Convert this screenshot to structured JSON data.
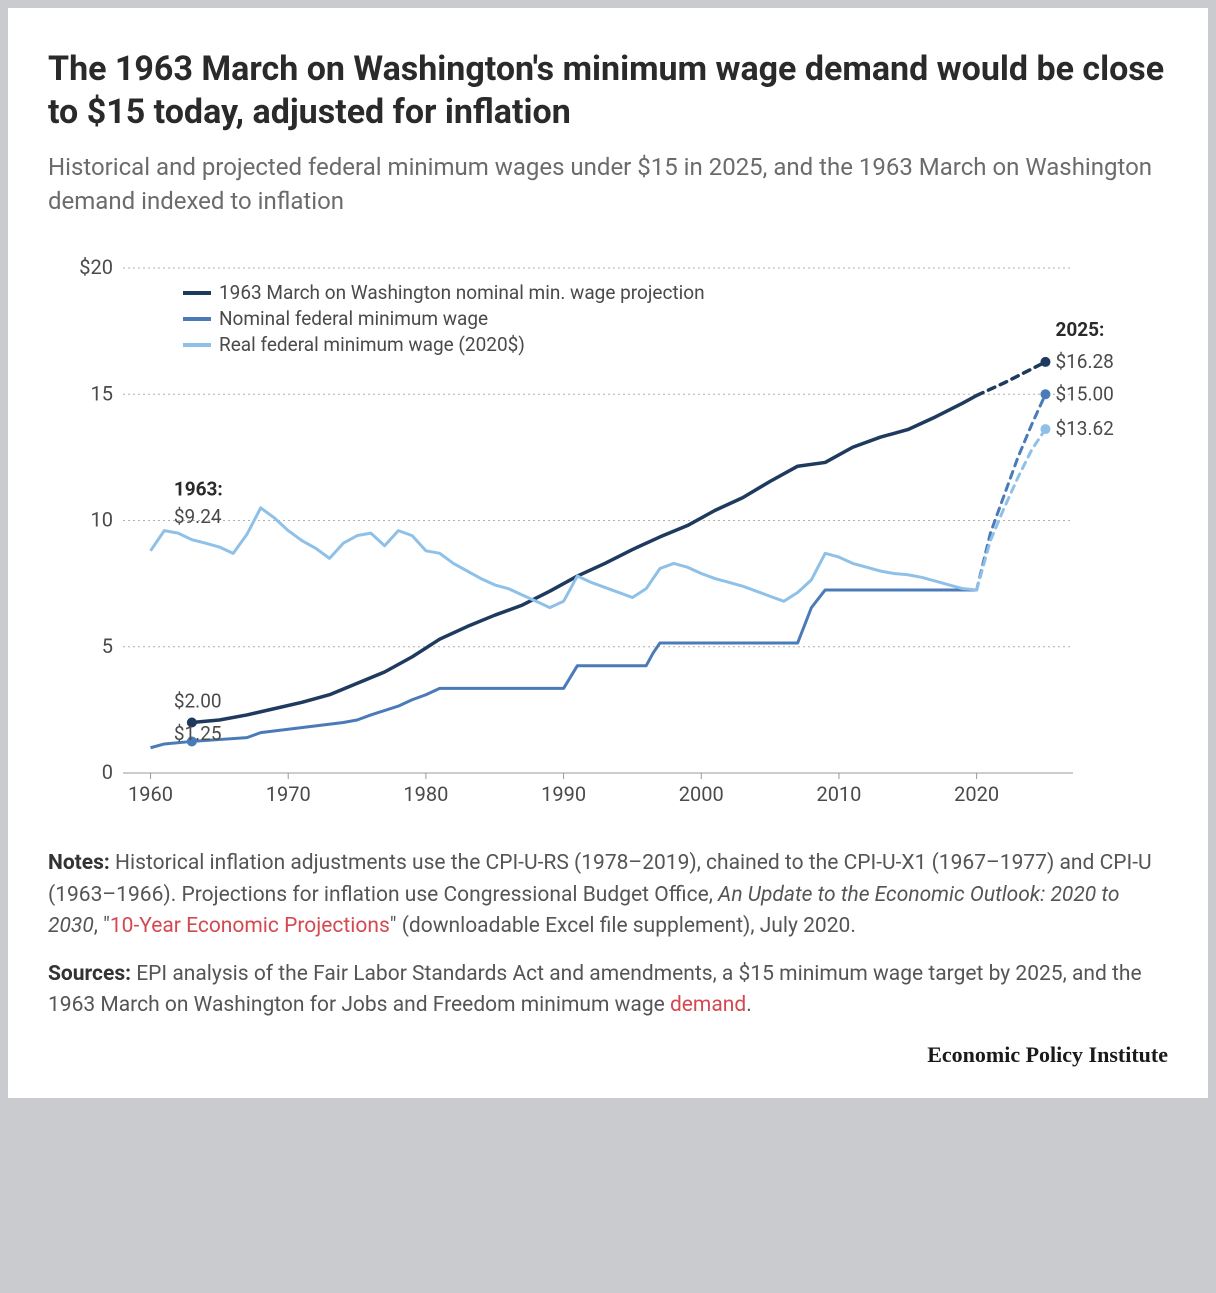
{
  "title": "The 1963 March on Washington's minimum wage demand would be close to $15 today, adjusted for inflation",
  "subtitle": "Historical and projected federal minimum wages under $15 in 2025, and the 1963 March on Washington demand indexed to inflation",
  "chart": {
    "type": "line",
    "background_color": "#ffffff",
    "grid_color": "#b0b0b0",
    "xlim": [
      1958,
      2027
    ],
    "ylim": [
      0,
      20
    ],
    "yticks": [
      0,
      5,
      10,
      15,
      20
    ],
    "ytick_labels": [
      "0",
      "5",
      "10",
      "15",
      "$20"
    ],
    "xticks": [
      1960,
      1970,
      1980,
      1990,
      2000,
      2010,
      2020
    ],
    "legend": {
      "position": "top-left",
      "items": [
        {
          "label": "1963 March on Washington nominal min. wage projection",
          "color": "#1f3a5f"
        },
        {
          "label": "Nominal federal minimum wage",
          "color": "#4a7bb8"
        },
        {
          "label": "Real federal minimum wage (2020$)",
          "color": "#8fc1e8"
        }
      ]
    },
    "series": [
      {
        "name": "march_projection",
        "color": "#1f3a5f",
        "width": 3.5,
        "solid": [
          [
            1963,
            2.0
          ],
          [
            1965,
            2.1
          ],
          [
            1967,
            2.3
          ],
          [
            1969,
            2.55
          ],
          [
            1971,
            2.8
          ],
          [
            1973,
            3.1
          ],
          [
            1975,
            3.55
          ],
          [
            1977,
            4.0
          ],
          [
            1979,
            4.6
          ],
          [
            1981,
            5.3
          ],
          [
            1983,
            5.8
          ],
          [
            1985,
            6.25
          ],
          [
            1987,
            6.65
          ],
          [
            1989,
            7.2
          ],
          [
            1991,
            7.8
          ],
          [
            1993,
            8.3
          ],
          [
            1995,
            8.85
          ],
          [
            1997,
            9.35
          ],
          [
            1999,
            9.8
          ],
          [
            2001,
            10.4
          ],
          [
            2003,
            10.9
          ],
          [
            2005,
            11.55
          ],
          [
            2007,
            12.15
          ],
          [
            2009,
            12.3
          ],
          [
            2011,
            12.9
          ],
          [
            2013,
            13.3
          ],
          [
            2015,
            13.6
          ],
          [
            2017,
            14.1
          ],
          [
            2019,
            14.65
          ],
          [
            2020,
            14.95
          ]
        ],
        "dashed": [
          [
            2020,
            14.95
          ],
          [
            2022,
            15.45
          ],
          [
            2024,
            16.0
          ],
          [
            2025,
            16.28
          ]
        ],
        "start_marker": {
          "x": 1963,
          "y": 2.0
        },
        "end_marker": {
          "x": 2025,
          "y": 16.28
        }
      },
      {
        "name": "nominal_fed",
        "color": "#4a7bb8",
        "width": 3,
        "solid": [
          [
            1960,
            1.0
          ],
          [
            1961,
            1.15
          ],
          [
            1963,
            1.25
          ],
          [
            1967,
            1.4
          ],
          [
            1968,
            1.6
          ],
          [
            1974,
            2.0
          ],
          [
            1975,
            2.1
          ],
          [
            1976,
            2.3
          ],
          [
            1978,
            2.65
          ],
          [
            1979,
            2.9
          ],
          [
            1980,
            3.1
          ],
          [
            1981,
            3.35
          ],
          [
            1990,
            3.35
          ],
          [
            1990.5,
            3.8
          ],
          [
            1991,
            4.25
          ],
          [
            1996,
            4.25
          ],
          [
            1996.5,
            4.75
          ],
          [
            1997,
            5.15
          ],
          [
            2007,
            5.15
          ],
          [
            2007.5,
            5.85
          ],
          [
            2008,
            6.55
          ],
          [
            2009,
            7.25
          ],
          [
            2020,
            7.25
          ]
        ],
        "dashed": [
          [
            2020,
            7.25
          ],
          [
            2021,
            9.5
          ],
          [
            2022,
            11.0
          ],
          [
            2023,
            12.5
          ],
          [
            2024,
            13.8
          ],
          [
            2025,
            15.0
          ]
        ],
        "start_marker": {
          "x": 1963,
          "y": 1.25
        },
        "end_marker": {
          "x": 2025,
          "y": 15.0
        }
      },
      {
        "name": "real_fed",
        "color": "#8fc1e8",
        "width": 3,
        "solid": [
          [
            1960,
            8.8
          ],
          [
            1961,
            9.6
          ],
          [
            1962,
            9.5
          ],
          [
            1963,
            9.24
          ],
          [
            1964,
            9.1
          ],
          [
            1965,
            8.95
          ],
          [
            1966,
            8.7
          ],
          [
            1967,
            9.45
          ],
          [
            1968,
            10.5
          ],
          [
            1969,
            10.1
          ],
          [
            1970,
            9.6
          ],
          [
            1971,
            9.2
          ],
          [
            1972,
            8.9
          ],
          [
            1973,
            8.5
          ],
          [
            1974,
            9.1
          ],
          [
            1975,
            9.4
          ],
          [
            1976,
            9.5
          ],
          [
            1977,
            9.0
          ],
          [
            1978,
            9.6
          ],
          [
            1979,
            9.4
          ],
          [
            1980,
            8.8
          ],
          [
            1981,
            8.7
          ],
          [
            1982,
            8.3
          ],
          [
            1983,
            8.0
          ],
          [
            1984,
            7.7
          ],
          [
            1985,
            7.45
          ],
          [
            1986,
            7.3
          ],
          [
            1987,
            7.05
          ],
          [
            1988,
            6.8
          ],
          [
            1989,
            6.55
          ],
          [
            1990,
            6.8
          ],
          [
            1991,
            7.8
          ],
          [
            1992,
            7.55
          ],
          [
            1993,
            7.35
          ],
          [
            1994,
            7.15
          ],
          [
            1995,
            6.95
          ],
          [
            1996,
            7.3
          ],
          [
            1997,
            8.1
          ],
          [
            1998,
            8.3
          ],
          [
            1999,
            8.15
          ],
          [
            2000,
            7.9
          ],
          [
            2001,
            7.7
          ],
          [
            2002,
            7.55
          ],
          [
            2003,
            7.4
          ],
          [
            2004,
            7.2
          ],
          [
            2005,
            7.0
          ],
          [
            2006,
            6.8
          ],
          [
            2007,
            7.15
          ],
          [
            2008,
            7.65
          ],
          [
            2009,
            8.7
          ],
          [
            2010,
            8.55
          ],
          [
            2011,
            8.3
          ],
          [
            2012,
            8.15
          ],
          [
            2013,
            8.0
          ],
          [
            2014,
            7.9
          ],
          [
            2015,
            7.85
          ],
          [
            2016,
            7.75
          ],
          [
            2017,
            7.6
          ],
          [
            2018,
            7.45
          ],
          [
            2019,
            7.3
          ],
          [
            2020,
            7.25
          ]
        ],
        "dashed": [
          [
            2020,
            7.25
          ],
          [
            2021,
            9.2
          ],
          [
            2022,
            10.5
          ],
          [
            2023,
            11.7
          ],
          [
            2024,
            12.8
          ],
          [
            2025,
            13.62
          ]
        ],
        "end_marker": {
          "x": 2025,
          "y": 13.62
        }
      }
    ],
    "annotations": {
      "start_year": "1963",
      "start_real": "$9.24",
      "start_march": "$2.00",
      "start_nominal": "$1.25",
      "end_year": "2025",
      "end_march": "$16.28",
      "end_nominal": "$15.00",
      "end_real": "$13.62"
    }
  },
  "notes": {
    "label": "Notes:",
    "text_a": " Historical inflation adjustments use the CPI-U-RS (1978–2019), chained to the CPI-U-X1 (1967–1977) and CPI-U (1963–1966). Projections for inflation use Congressional Budget Office, ",
    "text_italic": "An Update to the Economic Outlook: 2020 to 2030",
    "text_b": ", \"",
    "link1": "10-Year Economic Projections",
    "text_c": "\" (downloadable Excel file supplement), July 2020."
  },
  "sources": {
    "label": "Sources:",
    "text_a": " EPI analysis of the Fair Labor Standards Act and amendments, a $15 minimum wage target by 2025, and the 1963 March on Washington for Jobs and Freedom minimum wage ",
    "link1": "demand",
    "text_b": "."
  },
  "attribution": "Economic Policy Institute"
}
